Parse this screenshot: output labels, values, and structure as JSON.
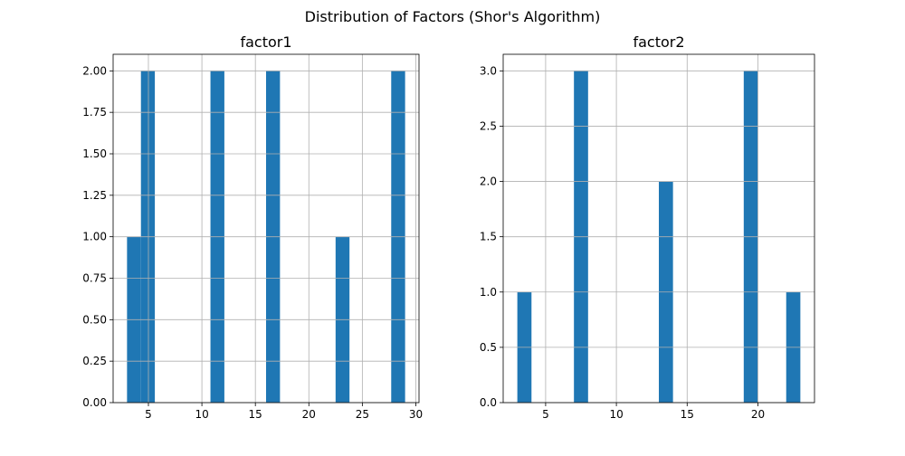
{
  "figure": {
    "suptitle": "Distribution of Factors (Shor's Algorithm)",
    "bar_color": "#1f77b4",
    "grid_color": "#b0b0b0"
  },
  "chart_data": [
    {
      "type": "bar",
      "title": "factor1",
      "xlabel": "",
      "ylabel": "",
      "grid": true,
      "xlim": [
        1.7,
        30.3
      ],
      "ylim": [
        0,
        2.1
      ],
      "xticks": [
        5,
        10,
        15,
        20,
        25,
        30
      ],
      "xtick_labels": [
        "5",
        "10",
        "15",
        "20",
        "25",
        "30"
      ],
      "yticks": [
        0,
        0.25,
        0.5,
        0.75,
        1.0,
        1.25,
        1.5,
        1.75,
        2.0
      ],
      "ytick_labels": [
        "0.00",
        "0.25",
        "0.50",
        "0.75",
        "1.00",
        "1.25",
        "1.50",
        "1.75",
        "2.00"
      ],
      "bins": [
        {
          "x0": 3.0,
          "x1": 4.3,
          "value": 1
        },
        {
          "x0": 4.3,
          "x1": 5.6,
          "value": 2
        },
        {
          "x0": 10.8,
          "x1": 12.1,
          "value": 2
        },
        {
          "x0": 16.0,
          "x1": 17.3,
          "value": 2
        },
        {
          "x0": 22.5,
          "x1": 23.8,
          "value": 1
        },
        {
          "x0": 27.7,
          "x1": 29.0,
          "value": 2
        }
      ]
    },
    {
      "type": "bar",
      "title": "factor2",
      "xlabel": "",
      "ylabel": "",
      "grid": true,
      "xlim": [
        2.0,
        24.0
      ],
      "ylim": [
        0,
        3.15
      ],
      "xticks": [
        5,
        10,
        15,
        20
      ],
      "xtick_labels": [
        "5",
        "10",
        "15",
        "20"
      ],
      "yticks": [
        0,
        0.5,
        1.0,
        1.5,
        2.0,
        2.5,
        3.0
      ],
      "ytick_labels": [
        "0.0",
        "0.5",
        "1.0",
        "1.5",
        "2.0",
        "2.5",
        "3.0"
      ],
      "bins": [
        {
          "x0": 3.0,
          "x1": 4.0,
          "value": 1
        },
        {
          "x0": 7.0,
          "x1": 8.0,
          "value": 3
        },
        {
          "x0": 13.0,
          "x1": 14.0,
          "value": 2
        },
        {
          "x0": 19.0,
          "x1": 20.0,
          "value": 3
        },
        {
          "x0": 22.0,
          "x1": 23.0,
          "value": 1
        }
      ]
    }
  ]
}
